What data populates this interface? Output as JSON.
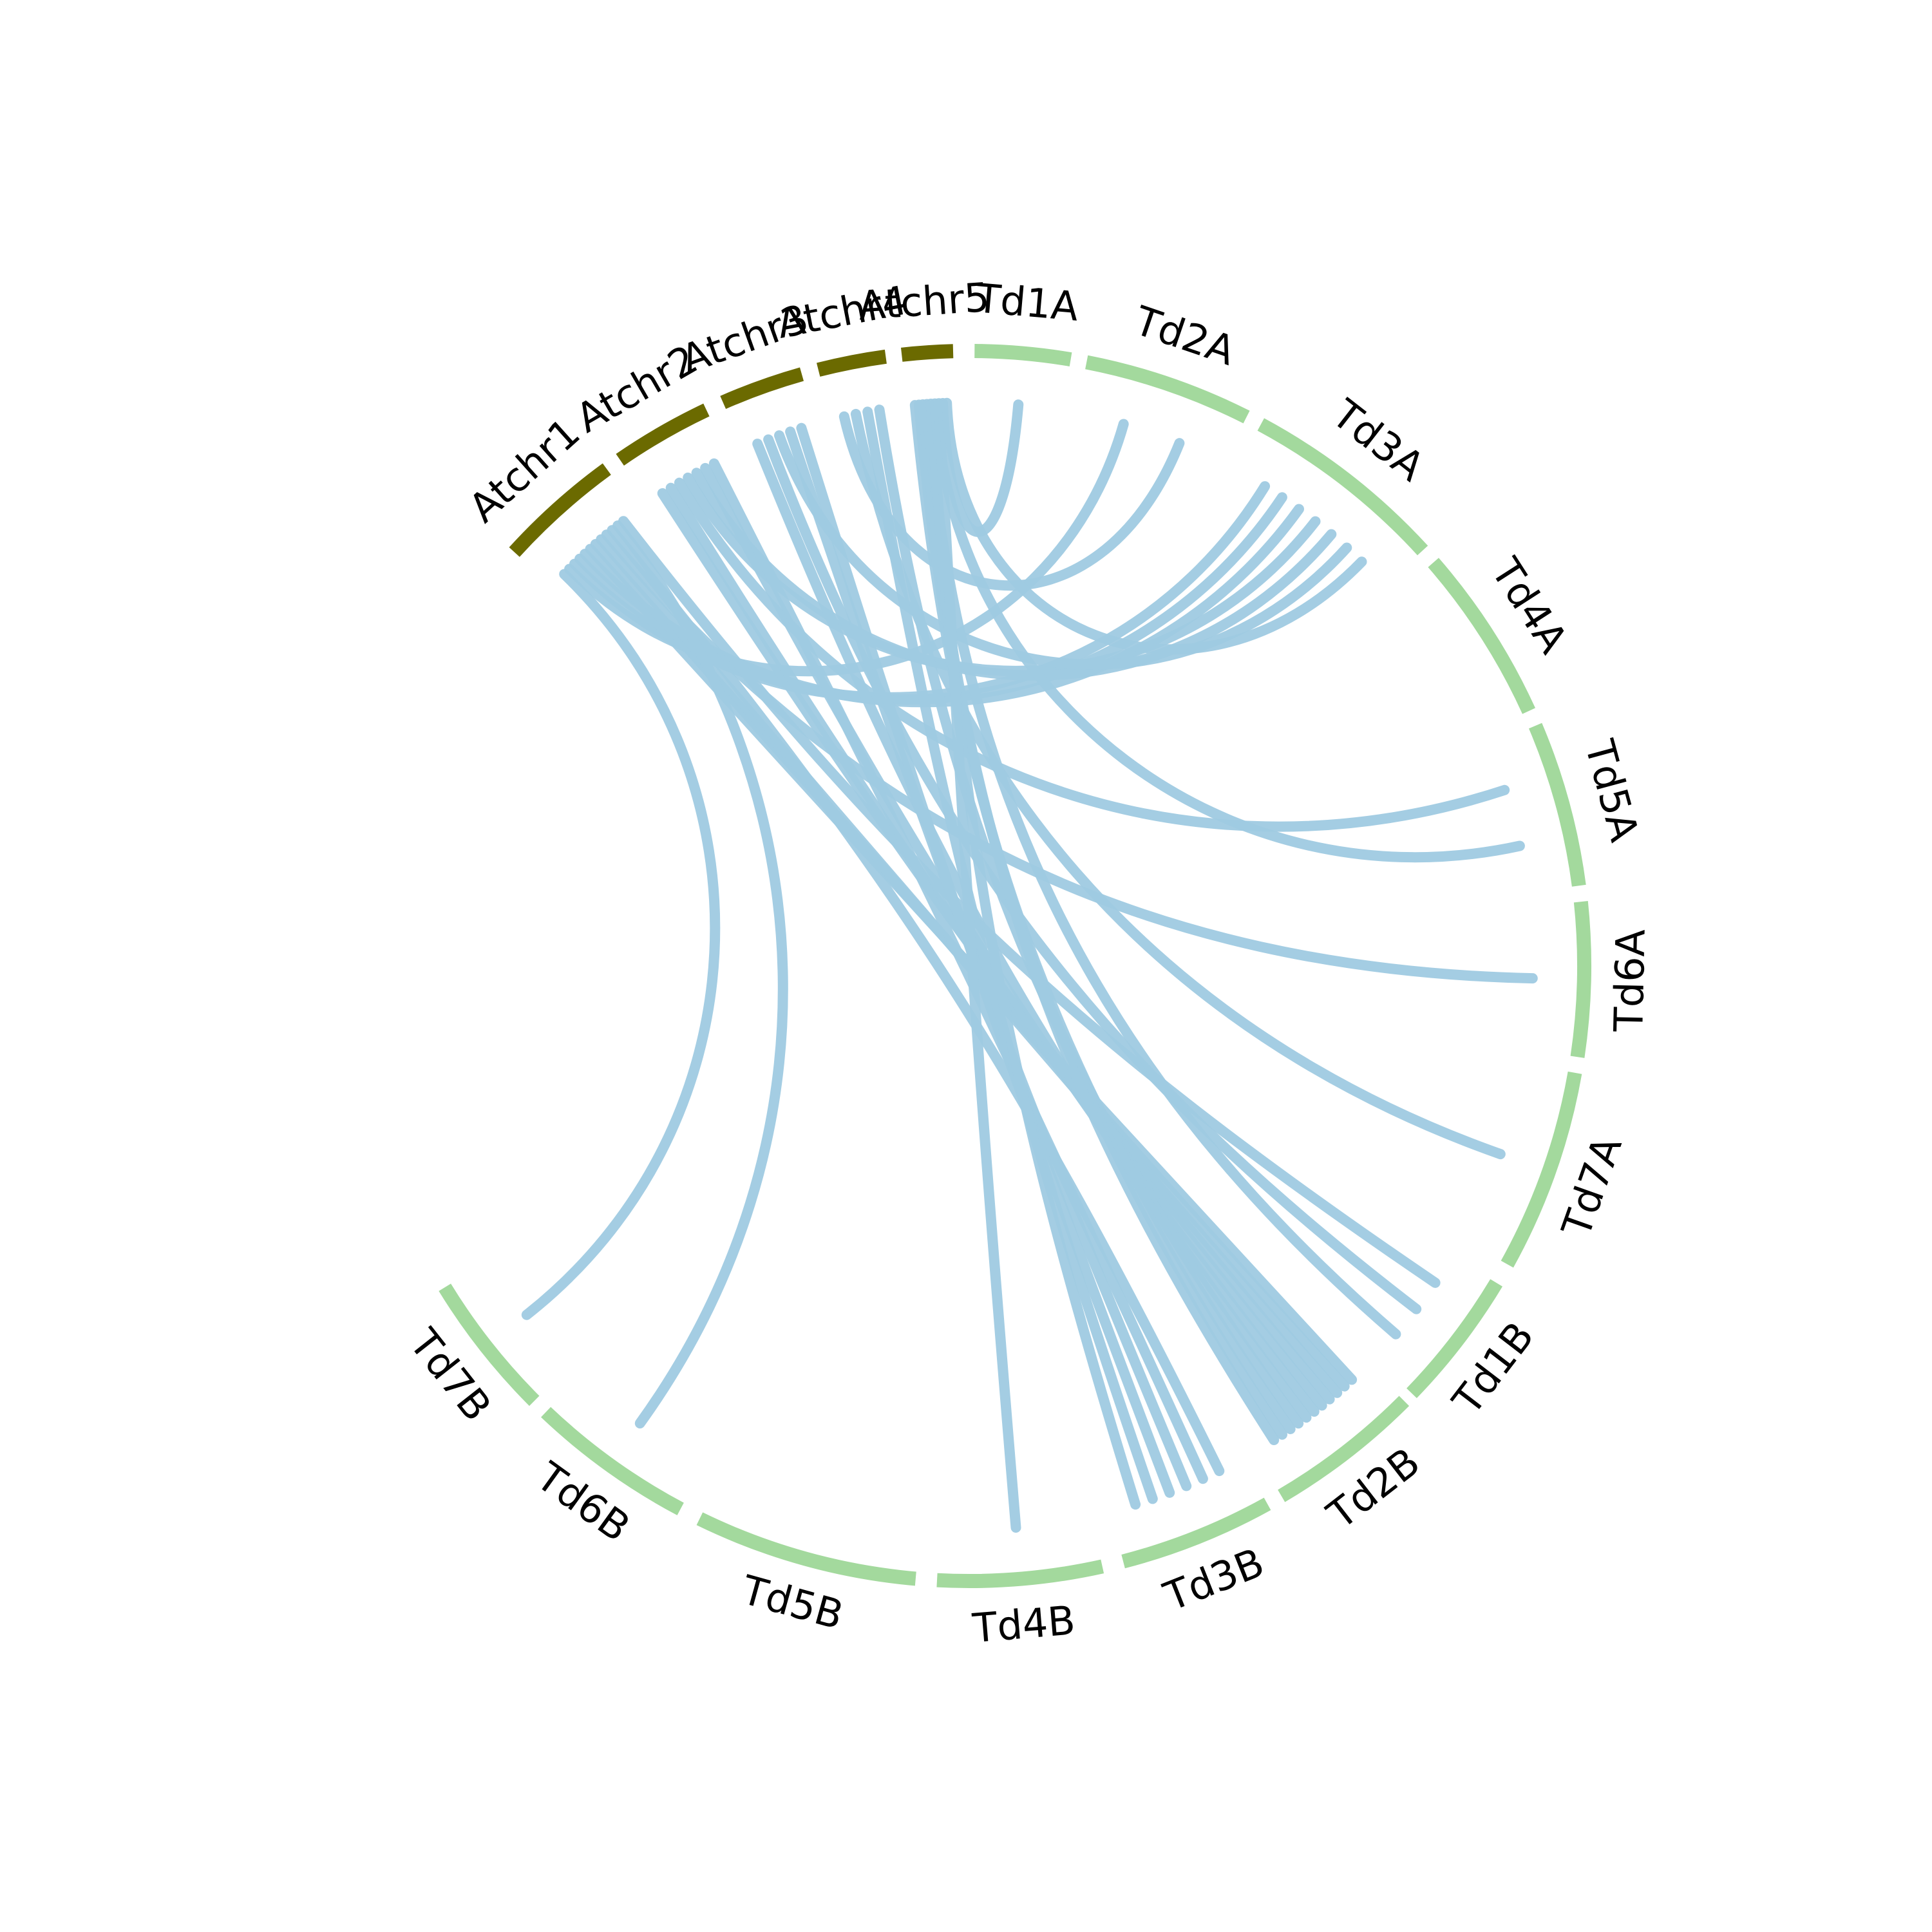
{
  "colors": {
    "arabidopsis": "#6b6a00",
    "durum": "#a3d99d",
    "link": "#9fcae2",
    "label": "#000000",
    "background": "#ffffff"
  },
  "chromosomes": [
    {
      "id": "Atchr1",
      "label": "Atchr1",
      "group": "arabidopsis"
    },
    {
      "id": "Atchr2",
      "label": "Atchr2",
      "group": "arabidopsis"
    },
    {
      "id": "Atchr3",
      "label": "Atchr3",
      "group": "arabidopsis"
    },
    {
      "id": "Atchr4",
      "label": "Atchr4",
      "group": "arabidopsis"
    },
    {
      "id": "Atchr5",
      "label": "Atchr5",
      "group": "arabidopsis"
    },
    {
      "id": "Td1A",
      "label": "Td1A",
      "group": "durum"
    },
    {
      "id": "Td2A",
      "label": "Td2A",
      "group": "durum"
    },
    {
      "id": "Td3A",
      "label": "Td3A",
      "group": "durum"
    },
    {
      "id": "Td4A",
      "label": "Td4A",
      "group": "durum"
    },
    {
      "id": "Td5A",
      "label": "Td5A",
      "group": "durum"
    },
    {
      "id": "Td6A",
      "label": "Td6A",
      "group": "durum"
    },
    {
      "id": "Td7A",
      "label": "Td7A",
      "group": "durum"
    },
    {
      "id": "Td1B",
      "label": "Td1B",
      "group": "durum"
    },
    {
      "id": "Td2B",
      "label": "Td2B",
      "group": "durum"
    },
    {
      "id": "Td3B",
      "label": "Td3B",
      "group": "durum"
    },
    {
      "id": "Td4B",
      "label": "Td4B",
      "group": "durum"
    },
    {
      "id": "Td5B",
      "label": "Td5B",
      "group": "durum"
    },
    {
      "id": "Td6B",
      "label": "Td6B",
      "group": "durum"
    },
    {
      "id": "Td7B",
      "label": "Td7B",
      "group": "durum"
    }
  ],
  "links": [
    {
      "from": "Atchr1",
      "to": "Td7B"
    },
    {
      "from": "Atchr1",
      "to": "Td2A"
    },
    {
      "from": "Atchr1",
      "to": "Td3A"
    },
    {
      "from": "Atchr1",
      "to": "Td3A"
    },
    {
      "from": "Atchr1",
      "to": "Td3A"
    },
    {
      "from": "Atchr1",
      "to": "Td2B"
    },
    {
      "from": "Atchr1",
      "to": "Td2B"
    },
    {
      "from": "Atchr1",
      "to": "Td2B"
    },
    {
      "from": "Atchr1",
      "to": "Td6A"
    },
    {
      "from": "Atchr1",
      "to": "Td3B"
    },
    {
      "from": "Atchr1",
      "to": "Td6B"
    },
    {
      "from": "Atchr1",
      "to": "Td1B"
    },
    {
      "from": "Atchr2",
      "to": "Td2B"
    },
    {
      "from": "Atchr2",
      "to": "Td2B"
    },
    {
      "from": "Atchr2",
      "to": "Td5A"
    },
    {
      "from": "Atchr2",
      "to": "Td3A"
    },
    {
      "from": "Atchr2",
      "to": "Td3A"
    },
    {
      "from": "Atchr2",
      "to": "Td2B"
    },
    {
      "from": "Atchr2",
      "to": "Td3B"
    },
    {
      "from": "Atchr3",
      "to": "Td2B"
    },
    {
      "from": "Atchr3",
      "to": "Td1B"
    },
    {
      "from": "Atchr3",
      "to": "Td3A"
    },
    {
      "from": "Atchr3",
      "to": "Td3B"
    },
    {
      "from": "Atchr3",
      "to": "Td3B"
    },
    {
      "from": "Atchr4",
      "to": "Td2A"
    },
    {
      "from": "Atchr4",
      "to": "Td7A"
    },
    {
      "from": "Atchr4",
      "to": "Td3B"
    },
    {
      "from": "Atchr4",
      "to": "Td2B"
    },
    {
      "from": "Atchr5",
      "to": "Td2B"
    },
    {
      "from": "Atchr5",
      "to": "Td2B"
    },
    {
      "from": "Atchr5",
      "to": "Td2B"
    },
    {
      "from": "Atchr5",
      "to": "Td1B"
    },
    {
      "from": "Atchr5",
      "to": "Td3B"
    },
    {
      "from": "Atchr5",
      "to": "Td5A"
    },
    {
      "from": "Atchr5",
      "to": "Td4B"
    },
    {
      "from": "Atchr5",
      "to": "Td1A"
    },
    {
      "from": "Atchr5",
      "to": "Td3A"
    }
  ]
}
